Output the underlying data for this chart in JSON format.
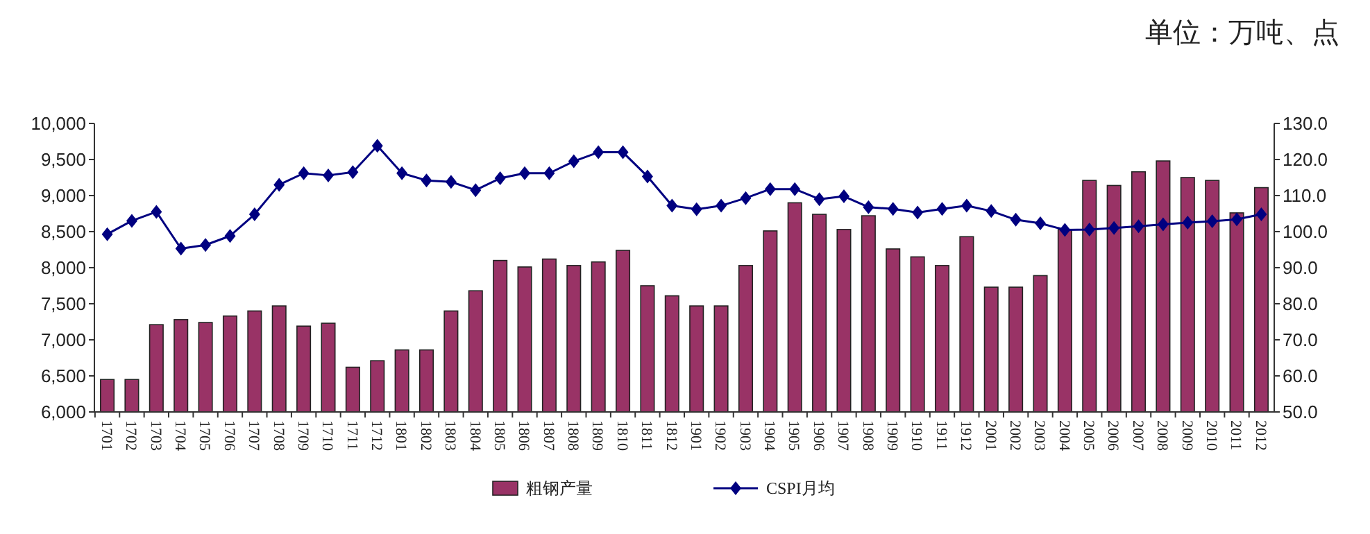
{
  "chart_data": {
    "type": "bar",
    "subtitle": "单位：万吨、点",
    "categories": [
      "1701",
      "1702",
      "1703",
      "1704",
      "1705",
      "1706",
      "1707",
      "1708",
      "1709",
      "1710",
      "1711",
      "1712",
      "1801",
      "1802",
      "1803",
      "1804",
      "1805",
      "1806",
      "1807",
      "1808",
      "1809",
      "1810",
      "1811",
      "1812",
      "1901",
      "1902",
      "1903",
      "1904",
      "1905",
      "1906",
      "1907",
      "1908",
      "1909",
      "1910",
      "1911",
      "1912",
      "2001",
      "2002",
      "2003",
      "2004",
      "2005",
      "2006",
      "2007",
      "2008",
      "2009",
      "2010",
      "2011",
      "2012"
    ],
    "series": [
      {
        "name": "粗钢产量",
        "color": "#993366",
        "values": [
          6450,
          6450,
          7210,
          7280,
          7240,
          7330,
          7400,
          7470,
          7190,
          7230,
          6620,
          6710,
          6860,
          6860,
          7400,
          7680,
          8100,
          8010,
          8120,
          8030,
          8080,
          8240,
          7750,
          7610,
          7470,
          7470,
          8030,
          8510,
          8900,
          8740,
          8530,
          8720,
          8260,
          8150,
          8030,
          8430,
          7730,
          7730,
          7890,
          8530,
          9210,
          9140,
          9330,
          9480,
          9250,
          9210,
          8760,
          9110
        ]
      },
      {
        "name": "CSPI月均",
        "type": "line",
        "axis": "y2",
        "color": "#000080",
        "marker": "diamond",
        "values": [
          99.3,
          103,
          105.5,
          95.3,
          96.3,
          98.8,
          104.8,
          113.0,
          116.2,
          115.6,
          116.5,
          123.8,
          116.2,
          114.2,
          113.8,
          111.5,
          114.8,
          116.2,
          116.2,
          119.5,
          122.0,
          122.0,
          115.3,
          107.2,
          106.2,
          107.2,
          109.3,
          111.8,
          111.8,
          109.0,
          109.8,
          106.8,
          106.3,
          105.3,
          106.3,
          107.2,
          105.7,
          103.3,
          102.3,
          100.5,
          100.6,
          101.0,
          101.5,
          102.0,
          102.5,
          102.9,
          103.4,
          104.8
        ]
      }
    ],
    "ylim": [
      6000,
      10000
    ],
    "yticks": [
      {
        "value": 6000,
        "label": "6,000"
      },
      {
        "value": 6500,
        "label": "6,500"
      },
      {
        "value": 7000,
        "label": "7,000"
      },
      {
        "value": 7500,
        "label": "7,500"
      },
      {
        "value": 8000,
        "label": "8,000"
      },
      {
        "value": 8500,
        "label": "8,500"
      },
      {
        "value": 9000,
        "label": "9,000"
      },
      {
        "value": 9500,
        "label": "9,500"
      },
      {
        "value": 10000,
        "label": "10,000"
      }
    ],
    "y2lim": [
      50,
      130
    ],
    "y2ticks": [
      {
        "value": 50,
        "label": "50.0"
      },
      {
        "value": 60,
        "label": "60.0"
      },
      {
        "value": 70,
        "label": "70.0"
      },
      {
        "value": 80,
        "label": "80.0"
      },
      {
        "value": 90,
        "label": "90.0"
      },
      {
        "value": 100,
        "label": "100.0"
      },
      {
        "value": 110,
        "label": "110.0"
      },
      {
        "value": 120,
        "label": "120.0"
      },
      {
        "value": 130,
        "label": "130.0"
      }
    ],
    "legend": "bottom",
    "grid": false
  }
}
